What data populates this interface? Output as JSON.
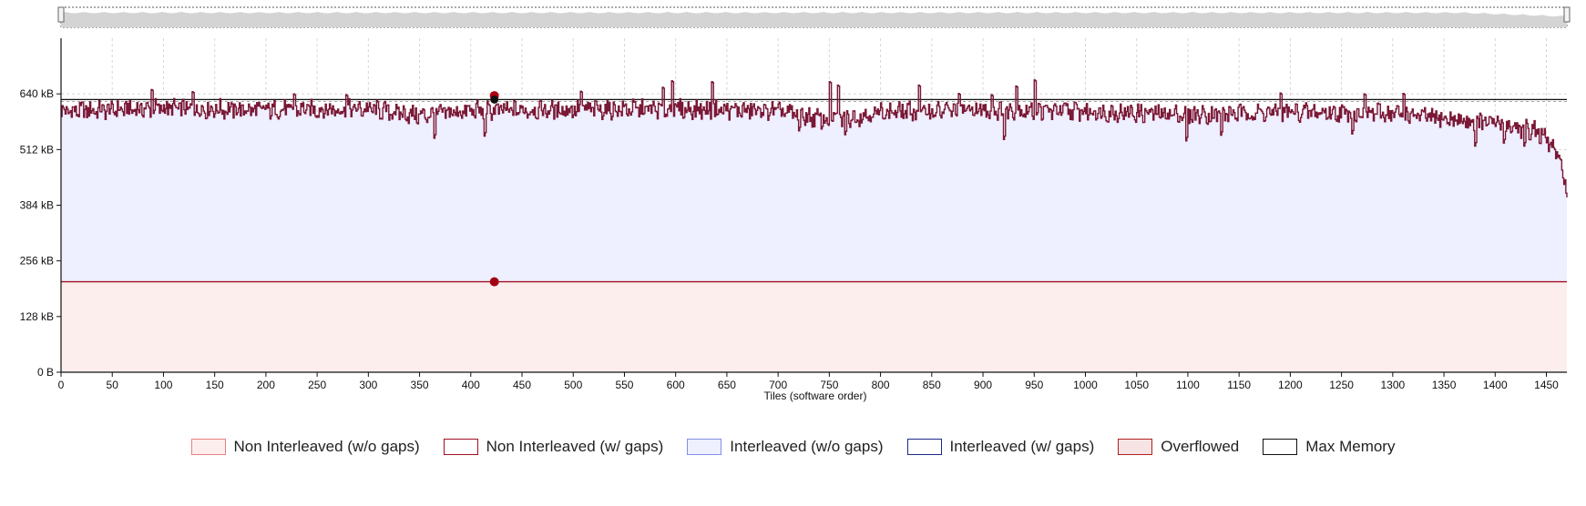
{
  "chart_data": {
    "type": "line",
    "title": "",
    "xlabel": "Tiles  (software order)",
    "ylabel": "",
    "xlim": [
      0,
      1470
    ],
    "ylim": [
      0,
      768
    ],
    "x_ticks": [
      0,
      50,
      100,
      150,
      200,
      250,
      300,
      350,
      400,
      450,
      500,
      550,
      600,
      650,
      700,
      750,
      800,
      850,
      900,
      950,
      1000,
      1050,
      1100,
      1150,
      1200,
      1250,
      1300,
      1350,
      1400,
      1450
    ],
    "y_ticks": [
      {
        "value": 0,
        "label": "0 B"
      },
      {
        "value": 128,
        "label": "128 kB"
      },
      {
        "value": 256,
        "label": "256 kB"
      },
      {
        "value": 384,
        "label": "384 kB"
      },
      {
        "value": 512,
        "label": "512 kB"
      },
      {
        "value": 640,
        "label": "640 kB"
      }
    ],
    "grid": true,
    "max_memory": 627,
    "non_interleaved_level": 208,
    "marker_x": 423,
    "marker_values": [
      636,
      627,
      208
    ],
    "series": [
      {
        "name": "Non Interleaved (w/o gaps)",
        "color": "#fdeeee",
        "edge": "#e88080"
      },
      {
        "name": "Non Interleaved (w/ gaps)",
        "color": "#ffffff",
        "edge": "#a01020"
      },
      {
        "name": "Interleaved (w/o gaps)",
        "color": "#eeefff",
        "edge": "#8090e8"
      },
      {
        "name": "Interleaved (w/ gaps)",
        "color": "#ffffff",
        "edge": "#1a2a8a"
      },
      {
        "name": "Overflowed",
        "color": "#f6e4e4",
        "edge": "#b02020"
      },
      {
        "name": "Max Memory",
        "color": "#ffffff",
        "edge": "#111111"
      }
    ],
    "trace_profile": [
      {
        "x": 0,
        "y": 600
      },
      {
        "x": 100,
        "y": 607
      },
      {
        "x": 200,
        "y": 603
      },
      {
        "x": 300,
        "y": 605
      },
      {
        "x": 350,
        "y": 590
      },
      {
        "x": 400,
        "y": 601
      },
      {
        "x": 500,
        "y": 604
      },
      {
        "x": 600,
        "y": 605
      },
      {
        "x": 700,
        "y": 600
      },
      {
        "x": 750,
        "y": 578
      },
      {
        "x": 800,
        "y": 598
      },
      {
        "x": 900,
        "y": 603
      },
      {
        "x": 1000,
        "y": 600
      },
      {
        "x": 1100,
        "y": 592
      },
      {
        "x": 1200,
        "y": 598
      },
      {
        "x": 1300,
        "y": 595
      },
      {
        "x": 1350,
        "y": 582
      },
      {
        "x": 1400,
        "y": 572
      },
      {
        "x": 1440,
        "y": 555
      },
      {
        "x": 1455,
        "y": 520
      },
      {
        "x": 1465,
        "y": 470
      },
      {
        "x": 1470,
        "y": 410
      }
    ],
    "spikes": [
      {
        "x": 88,
        "y": 650
      },
      {
        "x": 128,
        "y": 645
      },
      {
        "x": 227,
        "y": 640
      },
      {
        "x": 278,
        "y": 638
      },
      {
        "x": 507,
        "y": 646
      },
      {
        "x": 587,
        "y": 655
      },
      {
        "x": 596,
        "y": 670
      },
      {
        "x": 635,
        "y": 668
      },
      {
        "x": 750,
        "y": 668
      },
      {
        "x": 758,
        "y": 660
      },
      {
        "x": 837,
        "y": 660
      },
      {
        "x": 876,
        "y": 641
      },
      {
        "x": 908,
        "y": 638
      },
      {
        "x": 932,
        "y": 658
      },
      {
        "x": 950,
        "y": 672
      },
      {
        "x": 1190,
        "y": 642
      },
      {
        "x": 1272,
        "y": 640
      },
      {
        "x": 1310,
        "y": 641
      }
    ],
    "dips": [
      {
        "x": 364,
        "y": 538
      },
      {
        "x": 413,
        "y": 543
      },
      {
        "x": 720,
        "y": 555
      },
      {
        "x": 765,
        "y": 546
      },
      {
        "x": 920,
        "y": 535
      },
      {
        "x": 1098,
        "y": 532
      },
      {
        "x": 1132,
        "y": 545
      },
      {
        "x": 1260,
        "y": 548
      },
      {
        "x": 1380,
        "y": 520
      },
      {
        "x": 1408,
        "y": 527
      },
      {
        "x": 1428,
        "y": 520
      }
    ]
  }
}
